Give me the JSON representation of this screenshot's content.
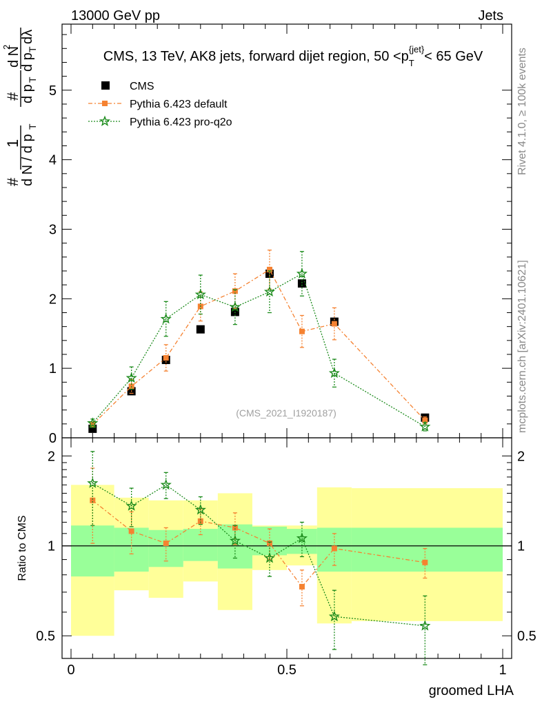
{
  "header": {
    "left": "13000 GeV pp",
    "right": "Jets"
  },
  "side_labels": {
    "rivet": "Rivet 4.1.0, ≥ 100k events",
    "mcplots": "mcplots.cern.ch [arXiv:2401.10621]"
  },
  "chart_data": {
    "type": "scatter",
    "title": "CMS, 13 TeV, AK8 jets, forward dijet region, 50 <p_T^{jet}< 65 GeV",
    "ylabel": "1/# dN/dp_T  #/(dN/dp_T) d²N/dp_T dλ",
    "xlabel": "groomed LHA",
    "watermark": "(CMS_2021_I1920187)",
    "xlim": [
      0,
      1
    ],
    "ylim": [
      0,
      5.95
    ],
    "main_yticks": [
      "0",
      "1",
      "2",
      "3",
      "4",
      "5"
    ],
    "xticks": [
      "0",
      "0.5",
      "1"
    ],
    "x": [
      0.05,
      0.14,
      0.22,
      0.3,
      0.38,
      0.46,
      0.535,
      0.61,
      0.82
    ],
    "bin_edges": [
      0,
      0.1,
      0.18,
      0.26,
      0.34,
      0.42,
      0.5,
      0.57,
      0.65,
      1.0
    ],
    "series": [
      {
        "name": "CMS",
        "color": "#000000",
        "marker": "square",
        "values": [
          0.13,
          0.67,
          1.12,
          1.56,
          1.81,
          2.36,
          2.22,
          1.67,
          0.29
        ]
      },
      {
        "name": "Pythia 6.423 default",
        "color": "#f58231",
        "marker": "square-small",
        "values": [
          0.19,
          0.74,
          1.15,
          1.89,
          2.11,
          2.42,
          1.53,
          1.64,
          0.25
        ],
        "errors": [
          0.04,
          0.1,
          0.19,
          0.21,
          0.25,
          0.28,
          0.23,
          0.23,
          0.05
        ]
      },
      {
        "name": "Pythia 6.423 pro-q2o",
        "color": "#1a8a1a",
        "marker": "star",
        "values": [
          0.21,
          0.86,
          1.71,
          2.06,
          1.88,
          2.1,
          2.36,
          0.93,
          0.16
        ],
        "errors": [
          0.06,
          0.16,
          0.25,
          0.28,
          0.25,
          0.3,
          0.32,
          0.2,
          0.06
        ]
      }
    ],
    "ratio": {
      "ylabel": "Ratio to CMS",
      "yticks": [
        "0.5",
        "1",
        "2"
      ],
      "yticks_values": [
        0.5,
        1,
        2
      ],
      "ylim": [
        0.42,
        2.3
      ],
      "band_inner": [
        [
          0.79,
          1.17
        ],
        [
          0.82,
          1.15
        ],
        [
          0.85,
          1.13
        ],
        [
          0.89,
          1.14
        ],
        [
          0.84,
          1.18
        ],
        [
          0.93,
          1.16
        ],
        [
          0.94,
          1.14
        ],
        [
          0.82,
          1.15
        ],
        [
          0.82,
          1.15
        ]
      ],
      "band_outer": [
        [
          0.5,
          1.6
        ],
        [
          0.71,
          1.45
        ],
        [
          0.67,
          1.42
        ],
        [
          0.76,
          1.42
        ],
        [
          0.61,
          1.5
        ],
        [
          0.83,
          1.17
        ],
        [
          0.86,
          1.17
        ],
        [
          0.55,
          1.57
        ],
        [
          0.56,
          1.56
        ]
      ],
      "series": [
        {
          "name": "Pythia 6.423 default",
          "color": "#f58231",
          "values": [
            1.42,
            1.12,
            1.02,
            1.21,
            1.15,
            1.02,
            0.73,
            0.98,
            0.88
          ],
          "errors": [
            0.4,
            0.18,
            0.13,
            0.12,
            0.14,
            0.12,
            0.1,
            0.12,
            0.1
          ]
        },
        {
          "name": "Pythia 6.423 pro-q2o",
          "color": "#1a8a1a",
          "values": [
            1.62,
            1.36,
            1.6,
            1.32,
            1.04,
            0.91,
            1.06,
            0.58,
            0.54
          ],
          "errors": [
            0.45,
            0.2,
            0.16,
            0.14,
            0.13,
            0.12,
            0.14,
            0.13,
            0.14
          ]
        }
      ]
    }
  }
}
